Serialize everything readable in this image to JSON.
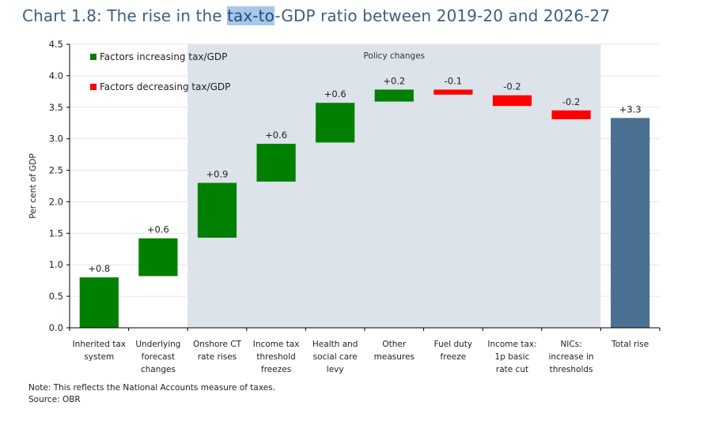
{
  "title": {
    "prefix": "Chart 1.8: The rise in the ",
    "highlight": "tax-to",
    "suffix": "-GDP ratio between 2019-20 and 2026-27"
  },
  "notes": {
    "note": "Note: This reflects the National Accounts measure of taxes.",
    "source": "Source: OBR"
  },
  "colors": {
    "increase": "#008000",
    "decrease": "#ff0000",
    "total": "#4a7092",
    "policy_band": "#dce3ea",
    "title": "#3d5f7f"
  },
  "chart_data": {
    "type": "bar",
    "subtype": "waterfall",
    "title": "Chart 1.8: The rise in the tax-to-GDP ratio between 2019-20 and 2026-27",
    "xlabel": "",
    "ylabel": "Per cent of GDP",
    "ylim": [
      0,
      4.5
    ],
    "yticks": [
      "0.0",
      "0.5",
      "1.0",
      "1.5",
      "2.0",
      "2.5",
      "3.0",
      "3.5",
      "4.0",
      "4.5"
    ],
    "grid": true,
    "legend_position": "top-left",
    "legend": [
      {
        "label": "Factors increasing tax/GDP",
        "kind": "increase"
      },
      {
        "label": "Factors decreasing tax/GDP",
        "kind": "decrease"
      }
    ],
    "band": {
      "label": "Policy changes",
      "from_category": 2,
      "to_category": 8
    },
    "categories": [
      [
        "Inherited tax",
        "system"
      ],
      [
        "Underlying",
        "forecast",
        "changes"
      ],
      [
        "Onshore CT",
        "rate rises"
      ],
      [
        "Income tax",
        "threshold",
        "freezes"
      ],
      [
        "Health and",
        "social care",
        "levy"
      ],
      [
        "Other",
        "measures"
      ],
      [
        "Fuel duty",
        "freeze"
      ],
      [
        "Income tax:",
        "1p basic",
        "rate cut"
      ],
      [
        "NICs:",
        "increase in",
        "thresholds"
      ],
      [
        "Total rise"
      ]
    ],
    "bars": [
      {
        "start": 0.0,
        "end": 0.8,
        "label": "+0.8",
        "kind": "increase"
      },
      {
        "start": 0.82,
        "end": 1.42,
        "label": "+0.6",
        "kind": "increase"
      },
      {
        "start": 1.43,
        "end": 2.3,
        "label": "+0.9",
        "kind": "increase"
      },
      {
        "start": 2.32,
        "end": 2.92,
        "label": "+0.6",
        "kind": "increase"
      },
      {
        "start": 2.94,
        "end": 3.57,
        "label": "+0.6",
        "kind": "increase"
      },
      {
        "start": 3.59,
        "end": 3.78,
        "label": "+0.2",
        "kind": "increase"
      },
      {
        "start": 3.78,
        "end": 3.7,
        "label": "-0.1",
        "kind": "decrease"
      },
      {
        "start": 3.69,
        "end": 3.52,
        "label": "-0.2",
        "kind": "decrease"
      },
      {
        "start": 3.45,
        "end": 3.31,
        "label": "-0.2",
        "kind": "decrease"
      },
      {
        "start": 0.0,
        "end": 3.33,
        "label": "+3.3",
        "kind": "total"
      }
    ]
  }
}
